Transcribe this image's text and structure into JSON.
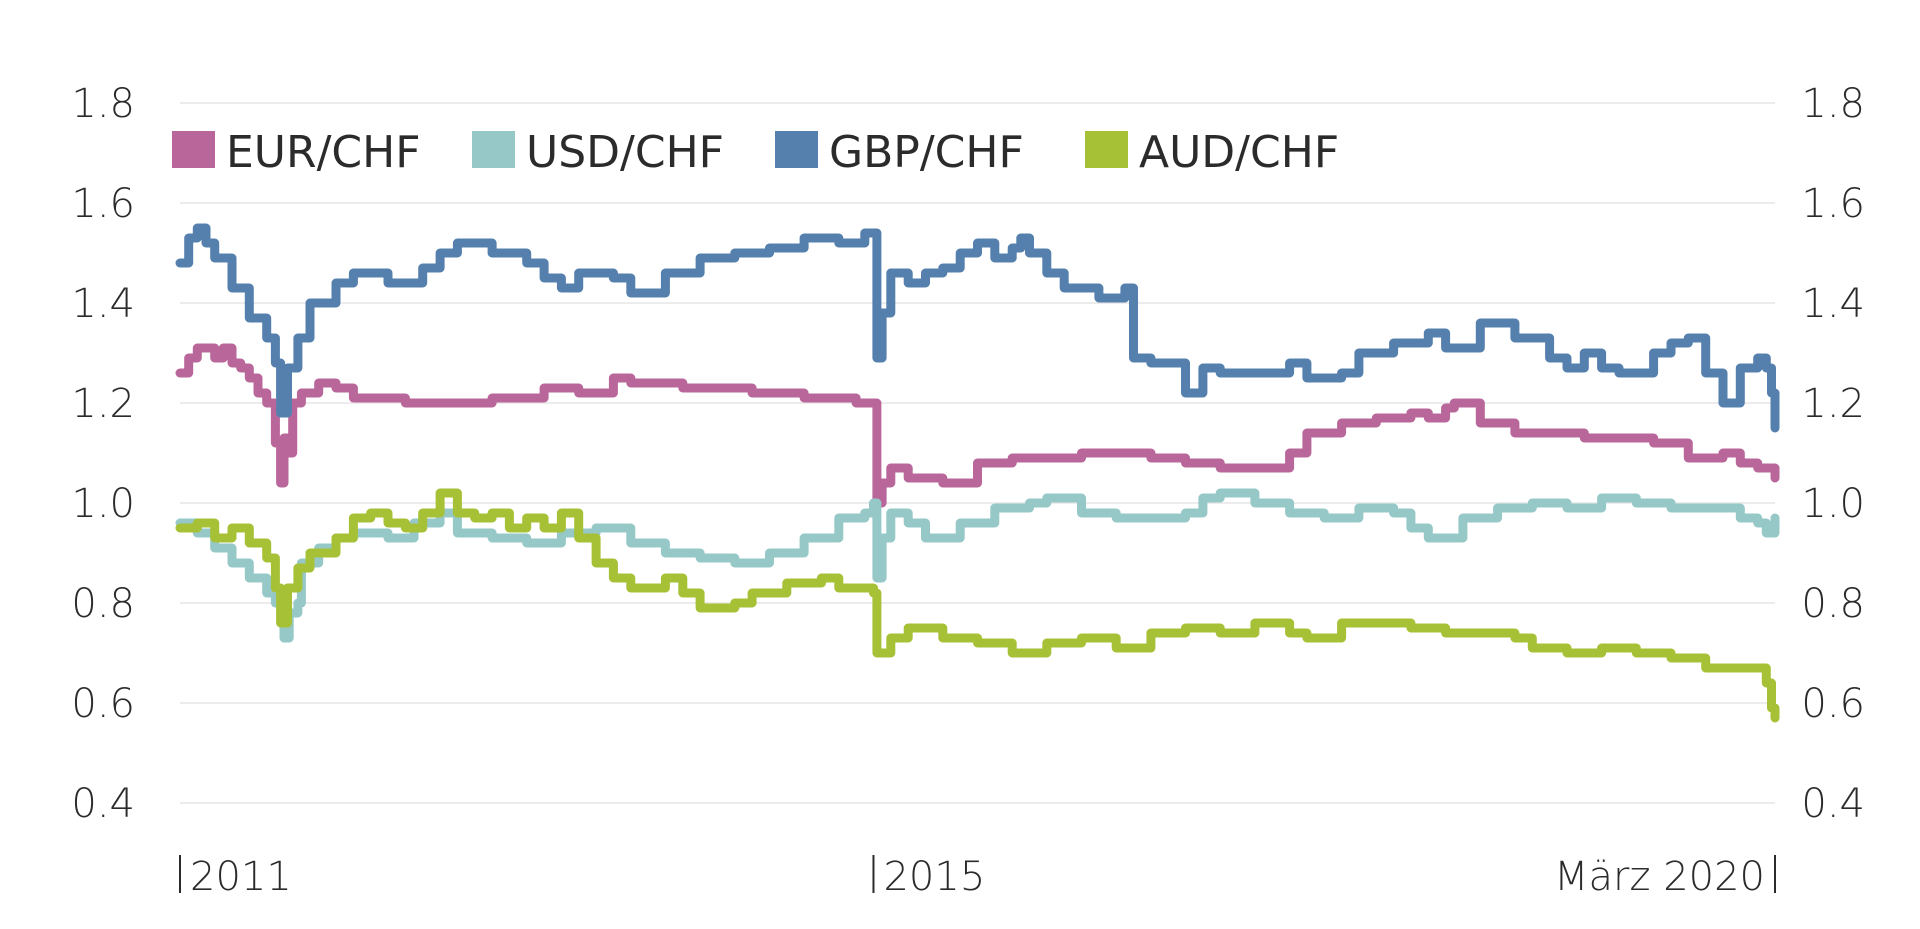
{
  "chart_data": {
    "type": "line",
    "title": "",
    "xlabel": "",
    "ylabel": "",
    "ylim": [
      0.4,
      1.8
    ],
    "yticks": [
      "0.4",
      "0.6",
      "0.8",
      "1.0",
      "1.2",
      "1.4",
      "1.6",
      "1.8"
    ],
    "xticks": [
      {
        "label": "2011",
        "x": 2011.0
      },
      {
        "label": "2015",
        "x": 2015.0
      },
      {
        "label": "März 2020",
        "x": 2020.2
      }
    ],
    "xlim": [
      2011.0,
      2020.2
    ],
    "grid": true,
    "legend_position": "top-left",
    "dual_y_axis": true,
    "series": [
      {
        "name": "EUR/CHF",
        "color": "#b9679a",
        "points": [
          [
            2011.0,
            1.26
          ],
          [
            2011.05,
            1.29
          ],
          [
            2011.1,
            1.31
          ],
          [
            2011.2,
            1.29
          ],
          [
            2011.25,
            1.31
          ],
          [
            2011.3,
            1.28
          ],
          [
            2011.35,
            1.27
          ],
          [
            2011.4,
            1.25
          ],
          [
            2011.45,
            1.22
          ],
          [
            2011.5,
            1.2
          ],
          [
            2011.55,
            1.12
          ],
          [
            2011.58,
            1.04
          ],
          [
            2011.6,
            1.13
          ],
          [
            2011.62,
            1.1
          ],
          [
            2011.65,
            1.2
          ],
          [
            2011.7,
            1.22
          ],
          [
            2011.8,
            1.24
          ],
          [
            2011.9,
            1.23
          ],
          [
            2012.0,
            1.21
          ],
          [
            2012.3,
            1.2
          ],
          [
            2012.6,
            1.2
          ],
          [
            2012.8,
            1.21
          ],
          [
            2013.0,
            1.21
          ],
          [
            2013.1,
            1.23
          ],
          [
            2013.2,
            1.23
          ],
          [
            2013.3,
            1.22
          ],
          [
            2013.5,
            1.25
          ],
          [
            2013.6,
            1.24
          ],
          [
            2013.9,
            1.23
          ],
          [
            2014.3,
            1.22
          ],
          [
            2014.6,
            1.21
          ],
          [
            2014.9,
            1.2
          ],
          [
            2015.0,
            1.2
          ],
          [
            2015.02,
            1.0
          ],
          [
            2015.05,
            1.04
          ],
          [
            2015.1,
            1.07
          ],
          [
            2015.2,
            1.05
          ],
          [
            2015.4,
            1.04
          ],
          [
            2015.6,
            1.08
          ],
          [
            2015.8,
            1.09
          ],
          [
            2016.0,
            1.09
          ],
          [
            2016.2,
            1.1
          ],
          [
            2016.4,
            1.1
          ],
          [
            2016.6,
            1.09
          ],
          [
            2016.8,
            1.08
          ],
          [
            2017.0,
            1.07
          ],
          [
            2017.2,
            1.07
          ],
          [
            2017.4,
            1.1
          ],
          [
            2017.5,
            1.14
          ],
          [
            2017.7,
            1.16
          ],
          [
            2017.9,
            1.17
          ],
          [
            2018.1,
            1.18
          ],
          [
            2018.2,
            1.17
          ],
          [
            2018.3,
            1.19
          ],
          [
            2018.35,
            1.2
          ],
          [
            2018.5,
            1.16
          ],
          [
            2018.7,
            1.14
          ],
          [
            2018.9,
            1.14
          ],
          [
            2019.1,
            1.13
          ],
          [
            2019.3,
            1.13
          ],
          [
            2019.5,
            1.12
          ],
          [
            2019.7,
            1.09
          ],
          [
            2019.9,
            1.1
          ],
          [
            2020.0,
            1.08
          ],
          [
            2020.1,
            1.07
          ],
          [
            2020.2,
            1.05
          ]
        ]
      },
      {
        "name": "USD/CHF",
        "color": "#96c8c8",
        "points": [
          [
            2011.0,
            0.96
          ],
          [
            2011.1,
            0.94
          ],
          [
            2011.2,
            0.91
          ],
          [
            2011.3,
            0.88
          ],
          [
            2011.4,
            0.85
          ],
          [
            2011.5,
            0.82
          ],
          [
            2011.55,
            0.8
          ],
          [
            2011.6,
            0.73
          ],
          [
            2011.63,
            0.78
          ],
          [
            2011.68,
            0.8
          ],
          [
            2011.7,
            0.88
          ],
          [
            2011.8,
            0.91
          ],
          [
            2011.9,
            0.93
          ],
          [
            2012.0,
            0.94
          ],
          [
            2012.2,
            0.93
          ],
          [
            2012.35,
            0.96
          ],
          [
            2012.5,
            0.98
          ],
          [
            2012.6,
            0.94
          ],
          [
            2012.8,
            0.93
          ],
          [
            2013.0,
            0.92
          ],
          [
            2013.2,
            0.94
          ],
          [
            2013.4,
            0.95
          ],
          [
            2013.6,
            0.92
          ],
          [
            2013.8,
            0.9
          ],
          [
            2014.0,
            0.89
          ],
          [
            2014.2,
            0.88
          ],
          [
            2014.4,
            0.9
          ],
          [
            2014.6,
            0.93
          ],
          [
            2014.8,
            0.97
          ],
          [
            2014.95,
            0.98
          ],
          [
            2015.0,
            1.0
          ],
          [
            2015.02,
            0.85
          ],
          [
            2015.05,
            0.93
          ],
          [
            2015.1,
            0.98
          ],
          [
            2015.2,
            0.96
          ],
          [
            2015.3,
            0.93
          ],
          [
            2015.5,
            0.96
          ],
          [
            2015.7,
            0.99
          ],
          [
            2015.9,
            1.0
          ],
          [
            2016.0,
            1.01
          ],
          [
            2016.2,
            0.98
          ],
          [
            2016.4,
            0.97
          ],
          [
            2016.6,
            0.97
          ],
          [
            2016.8,
            0.98
          ],
          [
            2016.9,
            1.01
          ],
          [
            2017.0,
            1.02
          ],
          [
            2017.2,
            1.0
          ],
          [
            2017.4,
            0.98
          ],
          [
            2017.6,
            0.97
          ],
          [
            2017.8,
            0.99
          ],
          [
            2018.0,
            0.98
          ],
          [
            2018.1,
            0.95
          ],
          [
            2018.2,
            0.93
          ],
          [
            2018.4,
            0.97
          ],
          [
            2018.6,
            0.99
          ],
          [
            2018.8,
            1.0
          ],
          [
            2019.0,
            0.99
          ],
          [
            2019.2,
            1.01
          ],
          [
            2019.4,
            1.0
          ],
          [
            2019.6,
            0.99
          ],
          [
            2019.8,
            0.99
          ],
          [
            2020.0,
            0.97
          ],
          [
            2020.1,
            0.96
          ],
          [
            2020.15,
            0.94
          ],
          [
            2020.2,
            0.97
          ]
        ]
      },
      {
        "name": "GBP/CHF",
        "color": "#5580ad",
        "points": [
          [
            2011.0,
            1.48
          ],
          [
            2011.05,
            1.53
          ],
          [
            2011.1,
            1.55
          ],
          [
            2011.15,
            1.52
          ],
          [
            2011.2,
            1.49
          ],
          [
            2011.3,
            1.43
          ],
          [
            2011.4,
            1.37
          ],
          [
            2011.5,
            1.33
          ],
          [
            2011.55,
            1.28
          ],
          [
            2011.58,
            1.18
          ],
          [
            2011.62,
            1.27
          ],
          [
            2011.68,
            1.33
          ],
          [
            2011.75,
            1.4
          ],
          [
            2011.9,
            1.44
          ],
          [
            2012.0,
            1.46
          ],
          [
            2012.2,
            1.44
          ],
          [
            2012.4,
            1.47
          ],
          [
            2012.5,
            1.5
          ],
          [
            2012.6,
            1.52
          ],
          [
            2012.8,
            1.5
          ],
          [
            2013.0,
            1.48
          ],
          [
            2013.1,
            1.45
          ],
          [
            2013.2,
            1.43
          ],
          [
            2013.3,
            1.46
          ],
          [
            2013.5,
            1.45
          ],
          [
            2013.6,
            1.42
          ],
          [
            2013.8,
            1.46
          ],
          [
            2014.0,
            1.49
          ],
          [
            2014.2,
            1.5
          ],
          [
            2014.4,
            1.51
          ],
          [
            2014.6,
            1.53
          ],
          [
            2014.8,
            1.52
          ],
          [
            2014.95,
            1.54
          ],
          [
            2015.0,
            1.54
          ],
          [
            2015.02,
            1.29
          ],
          [
            2015.05,
            1.38
          ],
          [
            2015.1,
            1.46
          ],
          [
            2015.2,
            1.44
          ],
          [
            2015.3,
            1.46
          ],
          [
            2015.4,
            1.47
          ],
          [
            2015.5,
            1.5
          ],
          [
            2015.6,
            1.52
          ],
          [
            2015.7,
            1.49
          ],
          [
            2015.8,
            1.51
          ],
          [
            2015.85,
            1.53
          ],
          [
            2015.9,
            1.5
          ],
          [
            2016.0,
            1.46
          ],
          [
            2016.1,
            1.43
          ],
          [
            2016.3,
            1.41
          ],
          [
            2016.45,
            1.43
          ],
          [
            2016.5,
            1.29
          ],
          [
            2016.6,
            1.28
          ],
          [
            2016.8,
            1.22
          ],
          [
            2016.9,
            1.27
          ],
          [
            2017.0,
            1.26
          ],
          [
            2017.2,
            1.26
          ],
          [
            2017.4,
            1.28
          ],
          [
            2017.5,
            1.25
          ],
          [
            2017.7,
            1.26
          ],
          [
            2017.8,
            1.3
          ],
          [
            2018.0,
            1.32
          ],
          [
            2018.2,
            1.34
          ],
          [
            2018.3,
            1.31
          ],
          [
            2018.5,
            1.36
          ],
          [
            2018.7,
            1.33
          ],
          [
            2018.9,
            1.29
          ],
          [
            2019.0,
            1.27
          ],
          [
            2019.1,
            1.3
          ],
          [
            2019.2,
            1.27
          ],
          [
            2019.3,
            1.26
          ],
          [
            2019.5,
            1.3
          ],
          [
            2019.6,
            1.32
          ],
          [
            2019.7,
            1.33
          ],
          [
            2019.8,
            1.26
          ],
          [
            2019.9,
            1.2
          ],
          [
            2020.0,
            1.27
          ],
          [
            2020.1,
            1.29
          ],
          [
            2020.15,
            1.27
          ],
          [
            2020.18,
            1.22
          ],
          [
            2020.2,
            1.15
          ]
        ]
      },
      {
        "name": "AUD/CHF",
        "color": "#a7c136",
        "points": [
          [
            2011.0,
            0.95
          ],
          [
            2011.1,
            0.96
          ],
          [
            2011.2,
            0.93
          ],
          [
            2011.3,
            0.95
          ],
          [
            2011.4,
            0.92
          ],
          [
            2011.5,
            0.89
          ],
          [
            2011.55,
            0.83
          ],
          [
            2011.58,
            0.76
          ],
          [
            2011.62,
            0.83
          ],
          [
            2011.68,
            0.87
          ],
          [
            2011.75,
            0.9
          ],
          [
            2011.9,
            0.93
          ],
          [
            2012.0,
            0.97
          ],
          [
            2012.1,
            0.98
          ],
          [
            2012.2,
            0.96
          ],
          [
            2012.3,
            0.95
          ],
          [
            2012.4,
            0.98
          ],
          [
            2012.5,
            1.02
          ],
          [
            2012.6,
            0.98
          ],
          [
            2012.7,
            0.97
          ],
          [
            2012.8,
            0.98
          ],
          [
            2012.9,
            0.95
          ],
          [
            2013.0,
            0.97
          ],
          [
            2013.1,
            0.95
          ],
          [
            2013.2,
            0.98
          ],
          [
            2013.3,
            0.93
          ],
          [
            2013.4,
            0.88
          ],
          [
            2013.5,
            0.85
          ],
          [
            2013.6,
            0.83
          ],
          [
            2013.8,
            0.85
          ],
          [
            2013.9,
            0.82
          ],
          [
            2014.0,
            0.79
          ],
          [
            2014.2,
            0.8
          ],
          [
            2014.3,
            0.82
          ],
          [
            2014.5,
            0.84
          ],
          [
            2014.7,
            0.85
          ],
          [
            2014.8,
            0.83
          ],
          [
            2015.0,
            0.82
          ],
          [
            2015.02,
            0.7
          ],
          [
            2015.1,
            0.73
          ],
          [
            2015.2,
            0.75
          ],
          [
            2015.4,
            0.73
          ],
          [
            2015.6,
            0.72
          ],
          [
            2015.8,
            0.7
          ],
          [
            2016.0,
            0.72
          ],
          [
            2016.2,
            0.73
          ],
          [
            2016.4,
            0.71
          ],
          [
            2016.6,
            0.74
          ],
          [
            2016.8,
            0.75
          ],
          [
            2017.0,
            0.74
          ],
          [
            2017.2,
            0.76
          ],
          [
            2017.4,
            0.74
          ],
          [
            2017.5,
            0.73
          ],
          [
            2017.7,
            0.76
          ],
          [
            2017.9,
            0.76
          ],
          [
            2018.1,
            0.75
          ],
          [
            2018.3,
            0.74
          ],
          [
            2018.5,
            0.74
          ],
          [
            2018.7,
            0.73
          ],
          [
            2018.8,
            0.71
          ],
          [
            2019.0,
            0.7
          ],
          [
            2019.2,
            0.71
          ],
          [
            2019.4,
            0.7
          ],
          [
            2019.6,
            0.69
          ],
          [
            2019.8,
            0.67
          ],
          [
            2020.0,
            0.67
          ],
          [
            2020.1,
            0.67
          ],
          [
            2020.15,
            0.64
          ],
          [
            2020.18,
            0.59
          ],
          [
            2020.2,
            0.57
          ]
        ]
      }
    ]
  }
}
